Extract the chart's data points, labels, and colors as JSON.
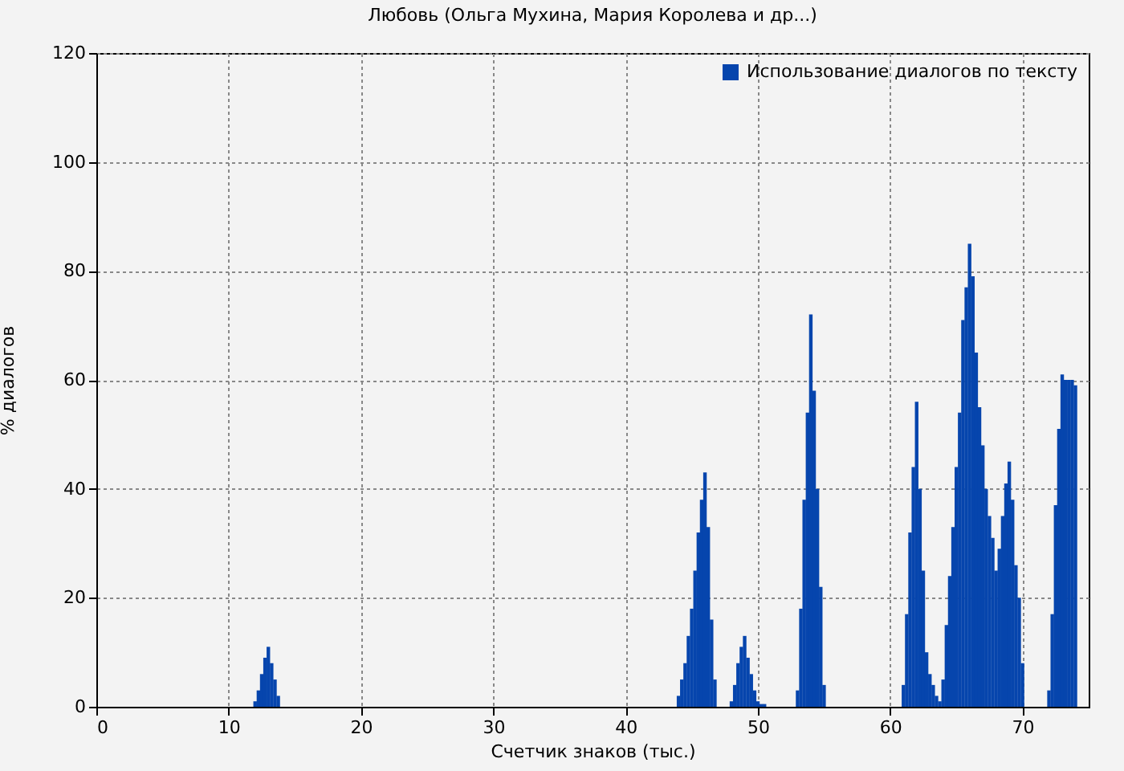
{
  "chart_data": {
    "type": "bar",
    "title": "Любовь (Ольга Мухина, Мария Королева и др...)",
    "xlabel": "Счетчик знаков (тыс.)",
    "ylabel": "% диалогов",
    "x": [
      12.0,
      12.25,
      12.5,
      12.75,
      13.0,
      13.25,
      13.5,
      13.75,
      44.0,
      44.25,
      44.5,
      44.75,
      45.0,
      45.25,
      45.5,
      45.75,
      46.0,
      46.25,
      46.5,
      46.75,
      48.0,
      48.25,
      48.5,
      48.75,
      49.0,
      49.25,
      49.5,
      49.75,
      50.0,
      50.25,
      50.5,
      53.0,
      53.25,
      53.5,
      53.75,
      54.0,
      54.25,
      54.5,
      54.75,
      55.0,
      61.0,
      61.25,
      61.5,
      61.75,
      62.0,
      62.25,
      62.5,
      62.75,
      63.0,
      63.25,
      63.5,
      63.75,
      64.0,
      64.25,
      64.5,
      64.75,
      65.0,
      65.25,
      65.5,
      65.75,
      66.0,
      66.25,
      66.5,
      66.75,
      67.0,
      67.25,
      67.5,
      67.75,
      68.0,
      68.25,
      68.5,
      68.75,
      69.0,
      69.25,
      69.5,
      69.75,
      70.0,
      72.0,
      72.25,
      72.5,
      72.75,
      73.0,
      73.25,
      73.5,
      73.75,
      74.0
    ],
    "series": [
      {
        "name": "Использование диалогов по тексту",
        "color": "#0645ad",
        "values": [
          1,
          3,
          6,
          9,
          11,
          8,
          5,
          2,
          2,
          5,
          8,
          13,
          18,
          25,
          32,
          38,
          43,
          33,
          16,
          5,
          1,
          4,
          8,
          11,
          13,
          9,
          6,
          3,
          1,
          0.5,
          0.5,
          3,
          18,
          38,
          54,
          72,
          58,
          40,
          22,
          4,
          4,
          17,
          32,
          44,
          56,
          40,
          25,
          10,
          6,
          4,
          2,
          1,
          5,
          15,
          24,
          33,
          44,
          54,
          71,
          77,
          85,
          79,
          65,
          55,
          48,
          40,
          35,
          31,
          25,
          29,
          35,
          41,
          45,
          38,
          26,
          20,
          8,
          3,
          17,
          37,
          51,
          61,
          60,
          60,
          60,
          59
        ]
      }
    ],
    "xlim": [
      0,
      75
    ],
    "xticks": [
      0,
      10,
      20,
      30,
      40,
      50,
      60,
      70
    ],
    "ylim": [
      0,
      120
    ],
    "yticks": [
      0,
      20,
      40,
      60,
      80,
      100,
      120
    ],
    "grid": true,
    "legend": "top right"
  }
}
